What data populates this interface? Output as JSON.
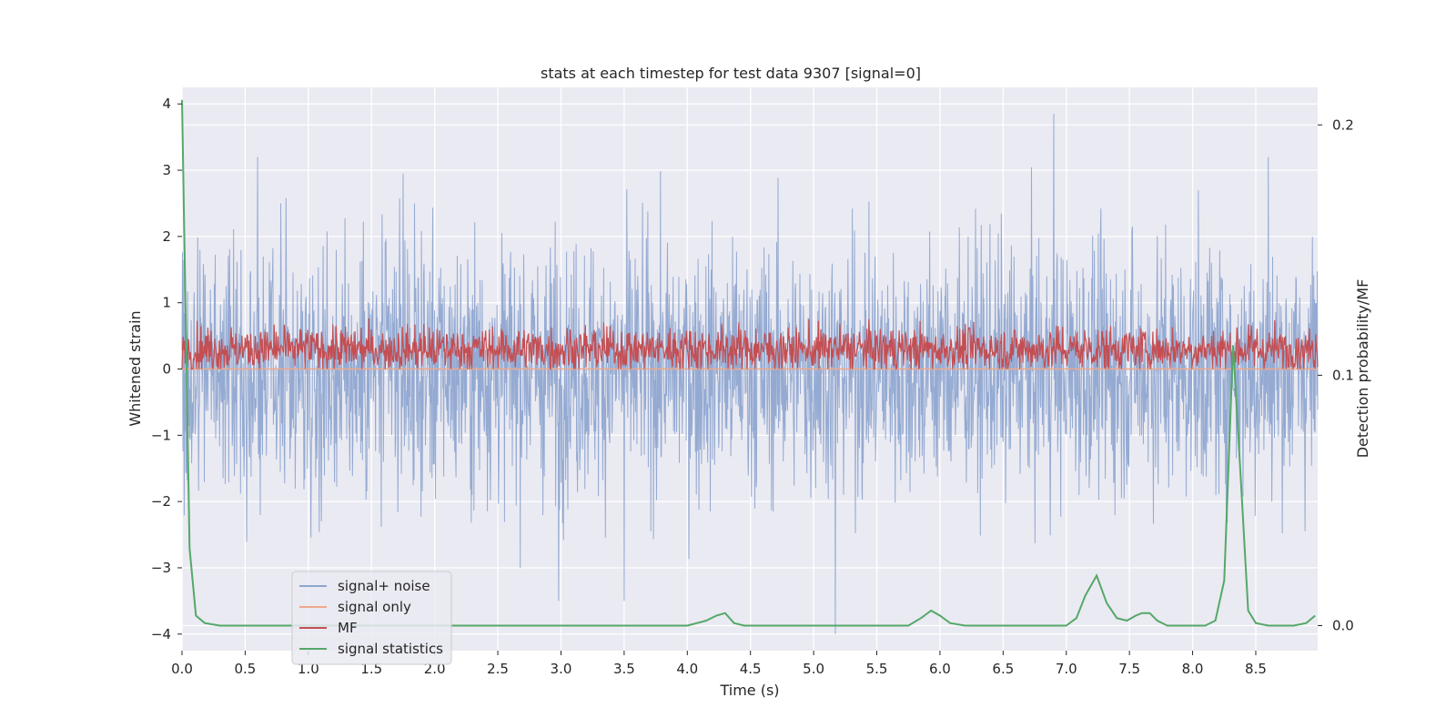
{
  "chart_data": {
    "type": "line",
    "title": "stats at each timestep for test data 9307 [signal=0]",
    "xlabel": "Time (s)",
    "ylabel": "Whitened strain",
    "y2label": "Detection probability/MF",
    "xlim": [
      0.0,
      8.99
    ],
    "ylim": [
      -4.25,
      4.25
    ],
    "y2lim": [
      -0.01,
      0.215
    ],
    "grid": true,
    "legend_position": "lower-left",
    "x_ticks": [
      "0.0",
      "0.5",
      "1.0",
      "1.5",
      "2.0",
      "2.5",
      "3.0",
      "3.5",
      "4.0",
      "4.5",
      "5.0",
      "5.5",
      "6.0",
      "6.5",
      "7.0",
      "7.5",
      "8.0",
      "8.5"
    ],
    "y_ticks": [
      "−4",
      "−3",
      "−2",
      "−1",
      "0",
      "1",
      "2",
      "3",
      "4"
    ],
    "y2_ticks": [
      "0.0",
      "0.1",
      "0.2"
    ],
    "series": [
      {
        "name": "signal+ noise",
        "color": "#8fa6d0",
        "axis": "left",
        "kind": "noise",
        "y_range": [
          -4.0,
          3.85
        ],
        "notable_peaks": [
          [
            0.6,
            3.2
          ],
          [
            1.75,
            2.95
          ],
          [
            6.9,
            3.85
          ],
          [
            8.6,
            3.2
          ],
          [
            2.98,
            -3.5
          ],
          [
            3.5,
            -3.5
          ],
          [
            5.17,
            -4.0
          ]
        ]
      },
      {
        "name": "signal only",
        "color": "#eea88a",
        "axis": "left",
        "kind": "flat",
        "value": 0.0
      },
      {
        "name": "MF",
        "color": "#c44e52",
        "axis": "left",
        "kind": "band",
        "y_range": [
          0.0,
          0.95
        ]
      },
      {
        "name": "signal statistics",
        "color": "#55a868",
        "axis": "right",
        "x": [
          0.0,
          0.03,
          0.06,
          0.11,
          0.18,
          0.3,
          0.5,
          1.0,
          2.0,
          3.0,
          4.0,
          4.15,
          4.23,
          4.3,
          4.37,
          4.45,
          4.6,
          5.0,
          5.5,
          5.75,
          5.85,
          5.93,
          6.0,
          6.08,
          6.2,
          6.5,
          7.0,
          7.08,
          7.15,
          7.24,
          7.32,
          7.4,
          7.48,
          7.55,
          7.6,
          7.66,
          7.72,
          7.8,
          8.0,
          8.1,
          8.18,
          8.25,
          8.32,
          8.38,
          8.44,
          8.5,
          8.6,
          8.8,
          8.9,
          8.97
        ],
        "y": [
          0.21,
          0.12,
          0.031,
          0.004,
          0.001,
          0.0,
          0.0,
          0.0,
          0.0,
          0.0,
          0.0,
          0.002,
          0.004,
          0.005,
          0.001,
          0.0,
          0.0,
          0.0,
          0.0,
          0.0,
          0.003,
          0.006,
          0.004,
          0.001,
          0.0,
          0.0,
          0.0,
          0.003,
          0.012,
          0.02,
          0.009,
          0.003,
          0.002,
          0.004,
          0.005,
          0.005,
          0.002,
          0.0,
          0.0,
          0.0,
          0.002,
          0.018,
          0.112,
          0.06,
          0.006,
          0.001,
          0.0,
          0.0,
          0.001,
          0.004
        ]
      }
    ]
  }
}
